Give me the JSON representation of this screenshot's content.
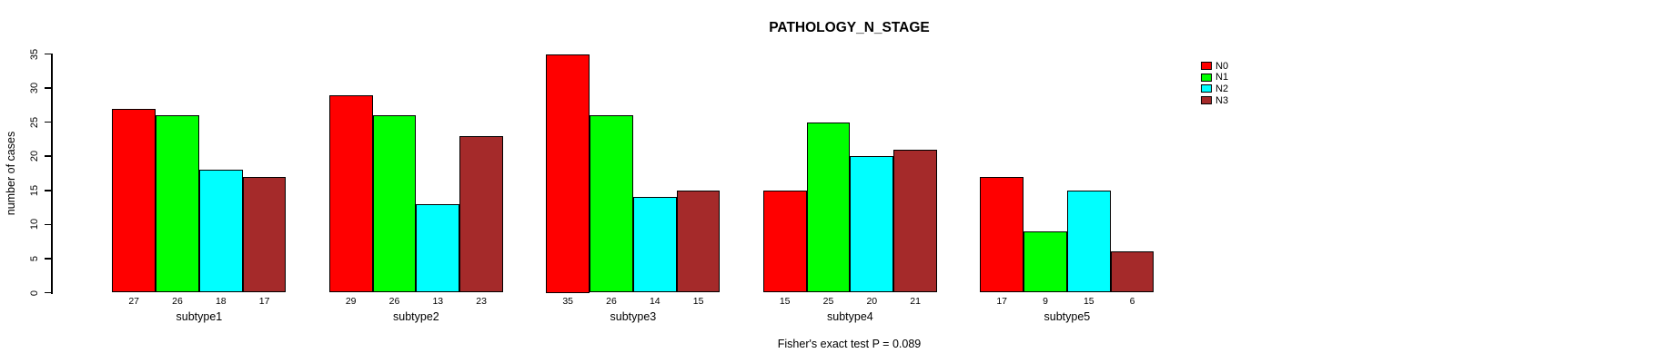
{
  "chart_data": {
    "type": "bar",
    "title": "PATHOLOGY_N_STAGE",
    "ylabel": "number of cases",
    "xlabel": "",
    "categories": [
      "subtype1",
      "subtype2",
      "subtype3",
      "subtype4",
      "subtype5"
    ],
    "series": [
      {
        "name": "N0",
        "color": "#ff0000",
        "values": [
          27,
          29,
          35,
          15,
          17
        ]
      },
      {
        "name": "N1",
        "color": "#00ff00",
        "values": [
          26,
          26,
          26,
          25,
          9
        ]
      },
      {
        "name": "N2",
        "color": "#00ffff",
        "values": [
          18,
          13,
          14,
          20,
          15
        ]
      },
      {
        "name": "N3",
        "color": "#a52a2a",
        "values": [
          17,
          23,
          15,
          21,
          6
        ]
      }
    ],
    "bar_value_labels": [
      [
        27,
        26,
        18,
        17
      ],
      [
        29,
        26,
        13,
        23
      ],
      [
        35,
        26,
        14,
        15
      ],
      [
        15,
        25,
        20,
        21
      ],
      [
        17,
        9,
        15,
        6
      ]
    ],
    "yticks": [
      0,
      5,
      10,
      15,
      20,
      25,
      30,
      35
    ],
    "ylim": [
      0,
      35
    ],
    "grid": false,
    "legend_position": "top-right",
    "legend_entries": [
      "N0",
      "N1",
      "N2",
      "N3"
    ],
    "annotation": "Fisher's exact test P = 0.089"
  }
}
